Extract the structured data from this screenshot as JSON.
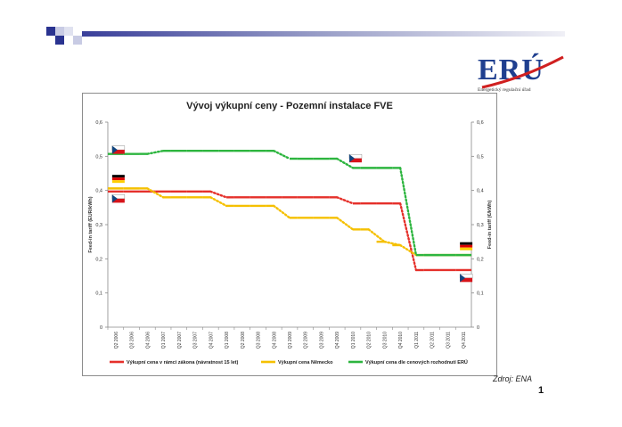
{
  "logo": {
    "text": "ERÚ",
    "subtitle": "Energetický regulační úřad"
  },
  "source": "Zdroj: ENA",
  "page_number": "1",
  "colors": {
    "legal": "#e5302a",
    "germany": "#f5c000",
    "eru": "#2db53f",
    "logo_blue": "#1f3f8f",
    "logo_red": "#d02020"
  },
  "chart_data": {
    "type": "line",
    "title": "Vývoj výkupní ceny - Pozemní instalace FVE",
    "ylabel_left": "Feed-in tariff (EUR/kWh)",
    "ylabel_right": "Feed-in tariff (€/kWh)",
    "ylim": [
      0,
      0.6
    ],
    "yticks": [
      "0",
      "0,1",
      "0,2",
      "0,3",
      "0,4",
      "0,5",
      "0,6"
    ],
    "grid": false,
    "legend_position": "bottom",
    "categories": [
      "Q2 2006",
      "Q3 2006",
      "Q4 2006",
      "Q1 2007",
      "Q2 2007",
      "Q3 2007",
      "Q4 2007",
      "Q1 2008",
      "Q2 2008",
      "Q3 2008",
      "Q4 2008",
      "Q1 2009",
      "Q2 2009",
      "Q3 2009",
      "Q4 2009",
      "Q1 2010",
      "Q2 2010",
      "Q3 2010",
      "Q4 2010",
      "Q1 2011",
      "Q2 2011",
      "Q3 2011",
      "Q4 2011"
    ],
    "series": [
      {
        "name": "Výkupní cena v rámci zákona (návratnost 15 let)",
        "color": "#e5302a",
        "values": [
          0.397,
          0.397,
          0.397,
          0.397,
          0.397,
          0.397,
          0.397,
          0.38,
          0.38,
          0.38,
          0.38,
          0.38,
          0.38,
          0.38,
          0.38,
          0.362,
          0.362,
          0.362,
          0.362,
          0.167,
          0.167,
          0.167,
          0.167
        ]
      },
      {
        "name": "Výkupní cena Německo",
        "color": "#f5c000",
        "values": [
          0.406,
          0.406,
          0.406,
          0.38,
          0.38,
          0.38,
          0.38,
          0.355,
          0.355,
          0.355,
          0.355,
          0.32,
          0.32,
          0.32,
          0.32,
          0.286,
          0.286,
          0.25,
          0.24,
          0.211,
          0.211,
          0.211,
          0.211
        ]
      },
      {
        "name": "Výkupní cena dle cenových rozhodnutí ERÚ",
        "color": "#2db53f",
        "values": [
          0.507,
          0.507,
          0.507,
          0.516,
          0.516,
          0.516,
          0.516,
          0.516,
          0.516,
          0.516,
          0.516,
          0.493,
          0.493,
          0.493,
          0.493,
          0.466,
          0.466,
          0.466,
          0.466,
          0.211,
          0.211,
          0.211,
          0.211
        ]
      }
    ],
    "annotations": [
      {
        "flag": "cz",
        "category": "Q2 2006",
        "value": 0.515
      },
      {
        "flag": "de",
        "category": "Q2 2006",
        "value": 0.43
      },
      {
        "flag": "cz",
        "category": "Q2 2006",
        "value": 0.372
      },
      {
        "flag": "cz",
        "category": "Q1 2010",
        "value": 0.49
      },
      {
        "flag": "de",
        "category": "Q4 2011",
        "value": 0.233
      },
      {
        "flag": "cz",
        "category": "Q4 2011",
        "value": 0.14
      }
    ]
  }
}
